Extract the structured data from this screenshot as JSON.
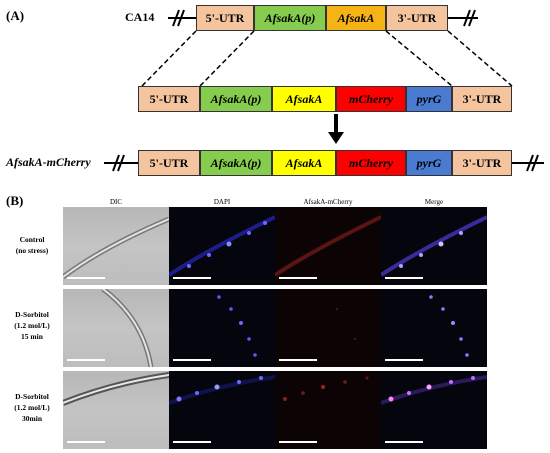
{
  "panel_a": {
    "label": "(A)",
    "top_strain": "CA14",
    "top_segments": [
      {
        "text": "5'-UTR",
        "italic": false,
        "color": "#f4c49e"
      },
      {
        "text": "AfsakA(p)",
        "italic": true,
        "color": "#86cc4e"
      },
      {
        "text": "AfsakA",
        "italic": true,
        "color": "#f5b315"
      },
      {
        "text": "3'-UTR",
        "italic": false,
        "color": "#f4c49e"
      }
    ],
    "construct_segments": [
      {
        "text": "5'-UTR",
        "italic": false,
        "color": "#f4c49e"
      },
      {
        "text": "AfsakA(p)",
        "italic": true,
        "color": "#86cc4e"
      },
      {
        "text": "AfsakA",
        "italic": true,
        "color": "#ffff00"
      },
      {
        "text": "mCherry",
        "italic": true,
        "color": "#ff0000"
      },
      {
        "text": "pyrG",
        "italic": true,
        "color": "#4a7bd0"
      },
      {
        "text": "3'-UTR",
        "italic": false,
        "color": "#f4c49e"
      }
    ],
    "bottom_strain": "AfsakA-mCherry"
  },
  "panel_b": {
    "label": "(B)",
    "columns": [
      "DIC",
      "DAPI",
      "AfsakA-mCherry",
      "Merge"
    ],
    "rows": [
      {
        "label_lines": [
          "Control",
          "(no stress)"
        ]
      },
      {
        "label_lines": [
          "D-Sorbitol",
          "(1.2 mol/L)",
          "15 min"
        ]
      },
      {
        "label_lines": [
          "D-Sorbitol",
          "(1.2 mol/L)",
          "30min"
        ]
      }
    ]
  }
}
